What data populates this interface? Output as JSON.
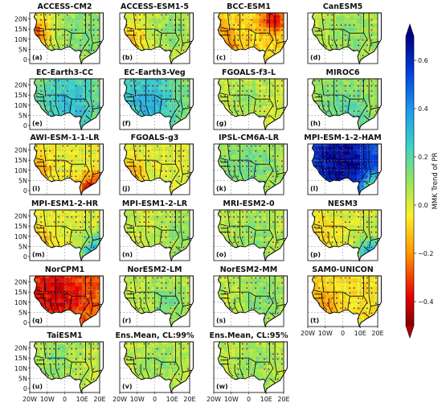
{
  "chart_data": {
    "type": "heatmap",
    "colorbar": {
      "label": "MMK Trend of PR",
      "ticks": [
        "0.6",
        "0.4",
        "0.2",
        "0.0",
        "−0.2",
        "−0.4"
      ],
      "tick_values": [
        0.6,
        0.4,
        0.2,
        0.0,
        -0.2,
        -0.4
      ],
      "range": [
        -0.5,
        0.7
      ],
      "extend": "both",
      "colormap": "jet_r"
    },
    "x_tick_labels": [
      "20W",
      "10W",
      "0",
      "10E",
      "20E"
    ],
    "y_tick_labels": [
      "20N",
      "15N",
      "10N",
      "5N",
      "0"
    ],
    "lon_range": [
      -20,
      20
    ],
    "lat_range": [
      -2,
      23
    ],
    "grid": "dashed",
    "panels": [
      {
        "title": "ACCESS-CM2",
        "label": "(a)",
        "base": 0.03,
        "sig": 0.5,
        "anoms": [
          [
            -16,
            13,
            5,
            -0.32
          ],
          [
            12,
            12,
            10,
            0.12
          ]
        ]
      },
      {
        "title": "ACCESS-ESM1-5",
        "label": "(b)",
        "base": 0.02,
        "sig": 0.5,
        "anoms": [
          [
            -12,
            9,
            6,
            -0.15
          ],
          [
            10,
            14,
            8,
            0.1
          ]
        ]
      },
      {
        "title": "BCC-ESM1",
        "label": "(c)",
        "base": -0.08,
        "sig": 0.45,
        "anoms": [
          [
            14,
            20,
            5,
            -0.3
          ],
          [
            -14,
            8,
            6,
            -0.12
          ]
        ]
      },
      {
        "title": "CanESM5",
        "label": "(d)",
        "base": 0.04,
        "sig": 0.45,
        "anoms": [
          [
            6,
            12,
            10,
            0.08
          ]
        ]
      },
      {
        "title": "EC-Earth3-CC",
        "label": "(e)",
        "base": 0.1,
        "sig": 0.6,
        "anoms": [
          [
            2,
            10,
            12,
            0.2
          ]
        ]
      },
      {
        "title": "EC-Earth3-Veg",
        "label": "(f)",
        "base": 0.12,
        "sig": 0.6,
        "anoms": [
          [
            -4,
            11,
            12,
            0.2
          ]
        ]
      },
      {
        "title": "FGOALS-f3-L",
        "label": "(g)",
        "base": 0.02,
        "sig": 0.4,
        "anoms": [
          [
            -2,
            14,
            8,
            0.08
          ]
        ]
      },
      {
        "title": "MIROC6",
        "label": "(h)",
        "base": 0.06,
        "sig": 0.5,
        "anoms": [
          [
            2,
            8,
            10,
            0.15
          ]
        ]
      },
      {
        "title": "AWI-ESM-1-1-LR",
        "label": "(i)",
        "base": -0.02,
        "sig": 0.5,
        "anoms": [
          [
            16,
            -1,
            6,
            -0.45
          ],
          [
            -16,
            10,
            5,
            -0.2
          ]
        ]
      },
      {
        "title": "FGOALS-g3",
        "label": "(j)",
        "base": 0.0,
        "sig": 0.4,
        "anoms": [
          [
            -14,
            6,
            6,
            -0.2
          ]
        ]
      },
      {
        "title": "IPSL-CM6A-LR",
        "label": "(k)",
        "base": 0.06,
        "sig": 0.55,
        "anoms": [
          [
            0,
            14,
            10,
            0.12
          ]
        ]
      },
      {
        "title": "MPI-ESM-1-2-HAM",
        "label": "(l)",
        "base": 0.4,
        "sig": 0.85,
        "anoms": [
          [
            0,
            15,
            14,
            0.3
          ],
          [
            18,
            0,
            5,
            -0.5
          ]
        ]
      },
      {
        "title": "MPI-ESM1-2-HR",
        "label": "(m)",
        "base": 0.0,
        "sig": 0.45,
        "anoms": [
          [
            18,
            2,
            6,
            0.35
          ],
          [
            -15,
            8,
            6,
            -0.15
          ]
        ]
      },
      {
        "title": "MPI-ESM1-2-LR",
        "label": "(n)",
        "base": 0.02,
        "sig": 0.5,
        "anoms": [
          [
            14,
            12,
            8,
            0.1
          ]
        ]
      },
      {
        "title": "MRI-ESM2-0",
        "label": "(o)",
        "base": 0.04,
        "sig": 0.5,
        "anoms": [
          [
            4,
            10,
            8,
            0.08
          ]
        ]
      },
      {
        "title": "NESM3",
        "label": "(p)",
        "base": 0.0,
        "sig": 0.45,
        "anoms": [
          [
            16,
            2,
            6,
            0.3
          ],
          [
            -12,
            12,
            6,
            -0.1
          ]
        ]
      },
      {
        "title": "NorCPM1",
        "label": "(q)",
        "base": -0.25,
        "sig": 0.7,
        "anoms": [
          [
            -6,
            14,
            12,
            -0.15
          ]
        ]
      },
      {
        "title": "NorESM2-LM",
        "label": "(r)",
        "base": 0.04,
        "sig": 0.5,
        "anoms": [
          [
            8,
            10,
            8,
            0.1
          ]
        ]
      },
      {
        "title": "NorESM2-MM",
        "label": "(s)",
        "base": 0.04,
        "sig": 0.5,
        "anoms": [
          [
            8,
            12,
            8,
            0.1
          ]
        ]
      },
      {
        "title": "SAM0-UNICON",
        "label": "(t)",
        "base": -0.06,
        "sig": 0.45,
        "anoms": [
          [
            -12,
            8,
            6,
            -0.15
          ]
        ]
      },
      {
        "title": "TaiESM1",
        "label": "(u)",
        "base": 0.04,
        "sig": 0.45,
        "anoms": [
          [
            -4,
            16,
            8,
            0.08
          ]
        ]
      },
      {
        "title": "Ens.Mean, CL:99%",
        "label": "(v)",
        "base": 0.04,
        "sig": 0.3,
        "anoms": [
          [
            4,
            12,
            10,
            0.06
          ]
        ]
      },
      {
        "title": "Ens.Mean, CL:95%",
        "label": "(w)",
        "base": 0.04,
        "sig": 0.35,
        "anoms": [
          [
            4,
            12,
            10,
            0.06
          ]
        ]
      }
    ]
  }
}
